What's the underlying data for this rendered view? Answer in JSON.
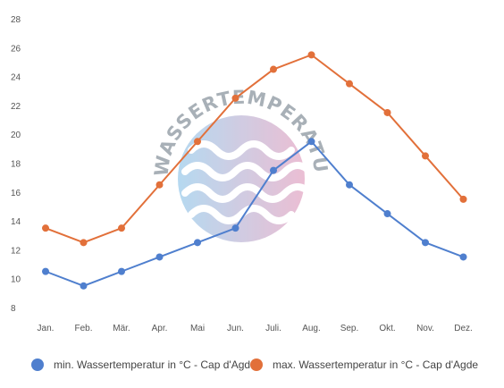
{
  "watermark": {
    "text": "WASSERTEMPERATUR.ORG"
  },
  "chart_data": {
    "type": "line",
    "categories": [
      "Jan.",
      "Feb.",
      "Mär.",
      "Apr.",
      "Mai",
      "Jun.",
      "Juli.",
      "Aug.",
      "Sep.",
      "Okt.",
      "Nov.",
      "Dez."
    ],
    "series": [
      {
        "name": "min. Wassertemperatur in °C - Cap d'Agde",
        "color": "#4f7fce",
        "values": [
          10.5,
          9.5,
          10.5,
          11.5,
          12.5,
          13.5,
          17.5,
          19.5,
          16.5,
          14.5,
          12.5,
          11.5
        ]
      },
      {
        "name": "max. Wassertemperatur in °C - Cap d'Agde",
        "color": "#e2703a",
        "values": [
          13.5,
          12.5,
          13.5,
          16.5,
          19.5,
          22.5,
          24.5,
          25.5,
          23.5,
          21.5,
          18.5,
          15.5
        ]
      }
    ],
    "yticks": [
      8,
      10,
      12,
      14,
      16,
      18,
      20,
      22,
      24,
      26,
      28
    ],
    "ylim": [
      8,
      28
    ],
    "grid": false,
    "legend": "bottom"
  }
}
